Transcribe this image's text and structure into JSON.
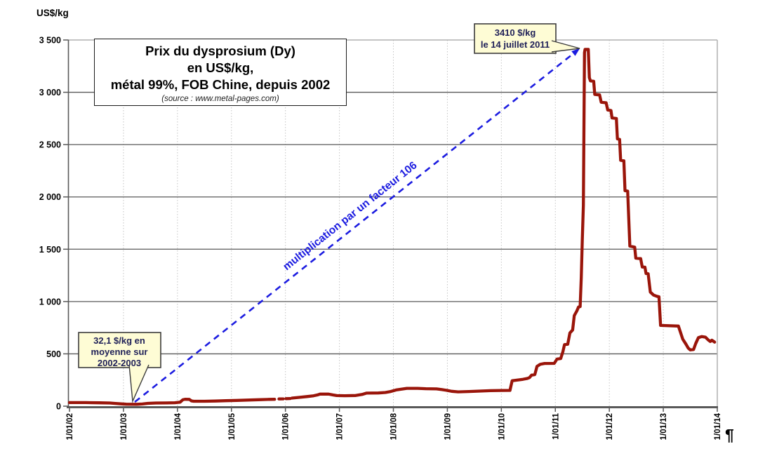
{
  "page": {
    "paragraph_mark": "¶"
  },
  "colors": {
    "series": "#9A150A",
    "arrow": "#1C1CE0",
    "callout_fill": "#FEFCD5",
    "callout_border": "#3C3C3C",
    "callout_text": "#1F2058",
    "grid_major": "#595959",
    "grid_minor_dotted": "#C4C4C4",
    "plot_border": "#B0B0B0",
    "axis": "#595959"
  },
  "chart_data": {
    "type": "line",
    "title": "Prix du dysprosium (Dy) en US$/kg, métal 99%, FOB Chine, depuis 2002",
    "title_lines": [
      "Prix du dysprosium (Dy)",
      "en US$/kg,",
      "métal 99%, FOB Chine, depuis 2002"
    ],
    "source_note": "(source : www.metal-pages.com)",
    "grid": true,
    "legend": "none",
    "y_axis": {
      "label": "US$/kg",
      "min": 0,
      "max": 3500,
      "tick_interval": 500,
      "tick_labels": [
        "0",
        "500",
        "1 000",
        "1 500",
        "2 000",
        "2 500",
        "3 000",
        "3 500"
      ]
    },
    "x_axis": {
      "min_year": 2002,
      "max_year": 2014,
      "tick_years": [
        2002,
        2003,
        2004,
        2005,
        2006,
        2007,
        2008,
        2009,
        2010,
        2011,
        2012,
        2013,
        2014
      ],
      "tick_labels": [
        "1/01/02",
        "1/01/03",
        "1/01/04",
        "1/01/05",
        "1/01/06",
        "1/01/07",
        "1/01/08",
        "1/01/09",
        "1/01/10",
        "1/01/11",
        "1/01/12",
        "1/01/13",
        "1/01/14"
      ]
    },
    "series": [
      {
        "name": "Prix du dysprosium (métal 99%, FOB Chine)",
        "unit": "US$/kg",
        "color": "#9A150A",
        "segments": [
          [
            [
              2002.0,
              34
            ],
            [
              2002.3,
              34
            ],
            [
              2002.55,
              32
            ],
            [
              2002.75,
              30
            ],
            [
              2002.85,
              26
            ],
            [
              2002.95,
              22
            ],
            [
              2003.05,
              19
            ],
            [
              2003.25,
              18
            ],
            [
              2003.35,
              21
            ],
            [
              2003.45,
              27
            ],
            [
              2003.6,
              30
            ],
            [
              2003.8,
              31
            ],
            [
              2003.95,
              33
            ],
            [
              2004.05,
              38
            ],
            [
              2004.1,
              62
            ],
            [
              2004.14,
              66
            ],
            [
              2004.22,
              65
            ],
            [
              2004.26,
              50
            ],
            [
              2004.3,
              47
            ],
            [
              2004.5,
              47
            ],
            [
              2004.7,
              49
            ],
            [
              2004.9,
              52
            ],
            [
              2005.1,
              55
            ],
            [
              2005.3,
              58
            ],
            [
              2005.5,
              62
            ],
            [
              2005.7,
              65
            ],
            [
              2005.8,
              66
            ]
          ],
          [
            [
              2005.88,
              69
            ],
            [
              2005.96,
              70
            ]
          ],
          [
            [
              2006.01,
              72
            ],
            [
              2006.09,
              73
            ]
          ],
          [
            [
              2006.12,
              77
            ],
            [
              2006.25,
              84
            ],
            [
              2006.4,
              92
            ],
            [
              2006.52,
              99
            ],
            [
              2006.6,
              108
            ],
            [
              2006.64,
              115
            ],
            [
              2006.8,
              115
            ],
            [
              2006.88,
              107
            ],
            [
              2006.95,
              101
            ],
            [
              2007.1,
              100
            ],
            [
              2007.3,
              102
            ],
            [
              2007.42,
              112
            ],
            [
              2007.5,
              125
            ],
            [
              2007.72,
              126
            ],
            [
              2007.85,
              131
            ],
            [
              2007.95,
              140
            ],
            [
              2008.05,
              155
            ],
            [
              2008.15,
              162
            ],
            [
              2008.25,
              170
            ],
            [
              2008.45,
              170
            ],
            [
              2008.6,
              167
            ],
            [
              2008.8,
              165
            ],
            [
              2008.9,
              158
            ],
            [
              2009.0,
              150
            ],
            [
              2009.08,
              142
            ],
            [
              2009.2,
              137
            ],
            [
              2009.4,
              140
            ],
            [
              2009.6,
              144
            ],
            [
              2009.8,
              148
            ],
            [
              2010.0,
              150
            ],
            [
              2010.16,
              151
            ],
            [
              2010.2,
              243
            ],
            [
              2010.3,
              250
            ],
            [
              2010.4,
              257
            ],
            [
              2010.48,
              265
            ],
            [
              2010.52,
              272
            ],
            [
              2010.56,
              297
            ],
            [
              2010.62,
              302
            ],
            [
              2010.66,
              380
            ],
            [
              2010.72,
              400
            ],
            [
              2010.8,
              408
            ],
            [
              2010.98,
              409
            ],
            [
              2011.03,
              450
            ],
            [
              2011.1,
              455
            ],
            [
              2011.14,
              520
            ],
            [
              2011.17,
              588
            ],
            [
              2011.23,
              592
            ],
            [
              2011.27,
              700
            ],
            [
              2011.32,
              728
            ],
            [
              2011.35,
              865
            ],
            [
              2011.4,
              912
            ],
            [
              2011.43,
              948
            ],
            [
              2011.46,
              952
            ],
            [
              2011.48,
              1230
            ],
            [
              2011.5,
              1600
            ],
            [
              2011.52,
              1920
            ],
            [
              2011.54,
              3380
            ],
            [
              2011.55,
              3410
            ],
            [
              2011.61,
              3410
            ],
            [
              2011.63,
              3140
            ],
            [
              2011.65,
              3110
            ],
            [
              2011.71,
              3105
            ],
            [
              2011.73,
              2980
            ],
            [
              2011.82,
              2975
            ],
            [
              2011.85,
              2905
            ],
            [
              2011.94,
              2900
            ],
            [
              2011.97,
              2830
            ],
            [
              2012.03,
              2826
            ],
            [
              2012.05,
              2755
            ],
            [
              2012.13,
              2750
            ],
            [
              2012.15,
              2555
            ],
            [
              2012.19,
              2550
            ],
            [
              2012.21,
              2350
            ],
            [
              2012.27,
              2345
            ],
            [
              2012.29,
              2060
            ],
            [
              2012.34,
              2055
            ],
            [
              2012.38,
              1530
            ],
            [
              2012.47,
              1520
            ],
            [
              2012.49,
              1415
            ],
            [
              2012.58,
              1410
            ],
            [
              2012.61,
              1330
            ],
            [
              2012.66,
              1328
            ],
            [
              2012.68,
              1268
            ],
            [
              2012.72,
              1265
            ],
            [
              2012.76,
              1090
            ],
            [
              2012.82,
              1062
            ],
            [
              2012.88,
              1050
            ],
            [
              2012.92,
              1045
            ],
            [
              2012.95,
              772
            ],
            [
              2013.28,
              766
            ],
            [
              2013.36,
              640
            ],
            [
              2013.42,
              592
            ],
            [
              2013.46,
              556
            ],
            [
              2013.5,
              538
            ],
            [
              2013.56,
              542
            ],
            [
              2013.6,
              598
            ],
            [
              2013.65,
              655
            ],
            [
              2013.71,
              665
            ],
            [
              2013.78,
              660
            ],
            [
              2013.83,
              634
            ],
            [
              2013.87,
              618
            ],
            [
              2013.9,
              630
            ],
            [
              2013.95,
              612
            ]
          ]
        ]
      }
    ],
    "annotations": {
      "peak_callout": {
        "lines": [
          "3410 $/kg",
          "le 14 juillet 2011"
        ],
        "text": "3410 $/kg le 14 juillet 2011",
        "points_to": {
          "year": 2011.54,
          "value": 3410
        }
      },
      "avg_callout": {
        "lines": [
          "32,1 $/kg en",
          "moyenne sur",
          "2002-2003"
        ],
        "text": "32,1 $/kg en moyenne sur 2002-2003",
        "points_to": {
          "year": 2003.17,
          "value": 20
        }
      },
      "arrow_label": "multiplication par un facteur 106",
      "arrow": {
        "from": [
          2003.21,
          40
        ],
        "to": [
          2011.455,
          3420
        ]
      }
    }
  }
}
